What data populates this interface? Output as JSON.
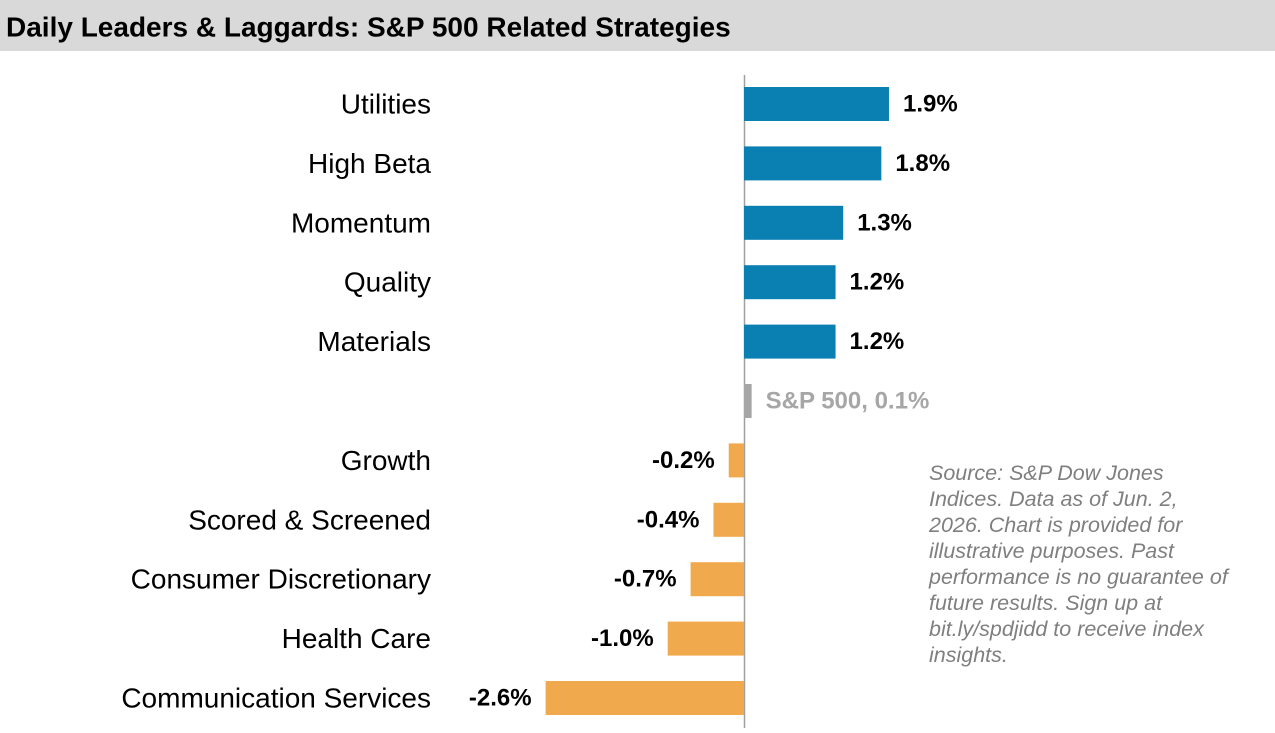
{
  "chart_data": {
    "type": "hbar",
    "title": "Daily Leaders & Laggards: S&P 500 Related Strategies",
    "categories": [
      "Utilities",
      "High Beta",
      "Momentum",
      "Quality",
      "Materials",
      null,
      "Growth",
      "Scored & Screened",
      "Consumer Discretionary",
      "Health Care",
      "Communication Services"
    ],
    "values": [
      1.9,
      1.8,
      1.3,
      1.2,
      1.2,
      0.1,
      -0.2,
      -0.4,
      -0.7,
      -1.0,
      -2.6
    ],
    "value_labels": [
      "1.9%",
      "1.8%",
      "1.3%",
      "1.2%",
      "1.2%",
      "S&P 500, 0.1%",
      "-0.2%",
      "-0.4%",
      "-0.7%",
      "-1.0%",
      "-2.6%"
    ],
    "colors": [
      "#0a7fb2",
      "#0a7fb2",
      "#0a7fb2",
      "#0a7fb2",
      "#0a7fb2",
      "#a6a6a6",
      "#f0a94c",
      "#f0a94c",
      "#f0a94c",
      "#f0a94c",
      "#f0a94c"
    ],
    "note": "Source: S&P Dow Jones Indices. Data as of Jun. 2, 2026. Chart is provided for illustrative purposes. Past performance is no guarantee of future results. Sign up at bit.ly/spdjidd to receive index insights."
  }
}
